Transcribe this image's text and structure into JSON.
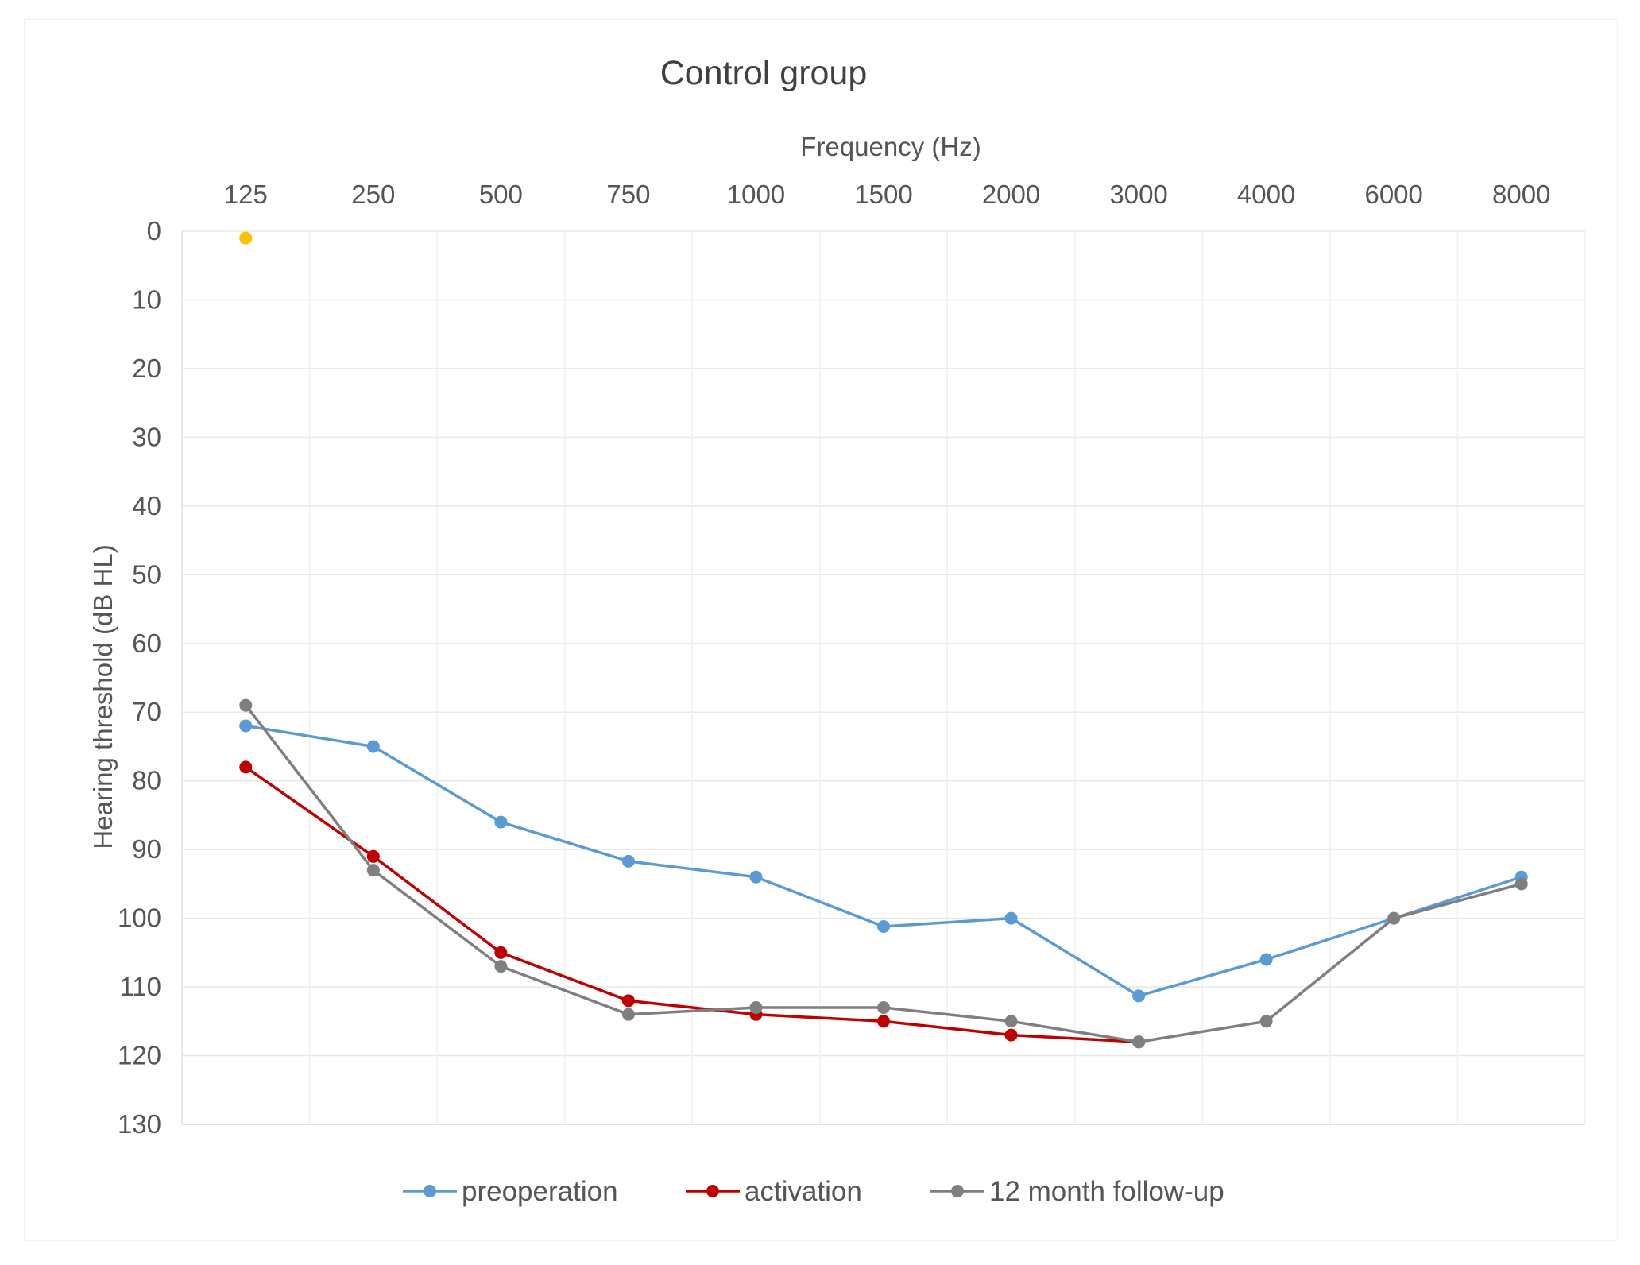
{
  "chart_data": {
    "type": "line",
    "title": "Control group",
    "xlabel": "Frequency (Hz)",
    "ylabel": "Hearing threshold (dB HL)",
    "x_axis_position": "top",
    "y_axis_inverted": true,
    "categories": [
      "125",
      "250",
      "500",
      "750",
      "1000",
      "1500",
      "2000",
      "3000",
      "4000",
      "6000",
      "8000"
    ],
    "y_ticks": [
      0,
      10,
      20,
      30,
      40,
      50,
      60,
      70,
      80,
      90,
      100,
      110,
      120,
      130
    ],
    "ylim": [
      0,
      130
    ],
    "grid": true,
    "legend_position": "bottom",
    "series": [
      {
        "name": "preoperation",
        "color": "#5b9bd5",
        "values": [
          72,
          75,
          86,
          91.7,
          94,
          101.2,
          100,
          111.3,
          106,
          100,
          94
        ]
      },
      {
        "name": "activation",
        "color": "#c00000",
        "values": [
          78,
          91,
          105,
          112,
          114,
          115,
          117,
          118,
          null,
          null,
          null
        ]
      },
      {
        "name": "12 month follow-up",
        "color": "#7f7f7f",
        "values": [
          69,
          93,
          107,
          114,
          113,
          113,
          115,
          118,
          115,
          100,
          95
        ]
      }
    ],
    "extra_points": [
      {
        "category": "125",
        "value": 1,
        "color": "#ffc000"
      }
    ]
  }
}
